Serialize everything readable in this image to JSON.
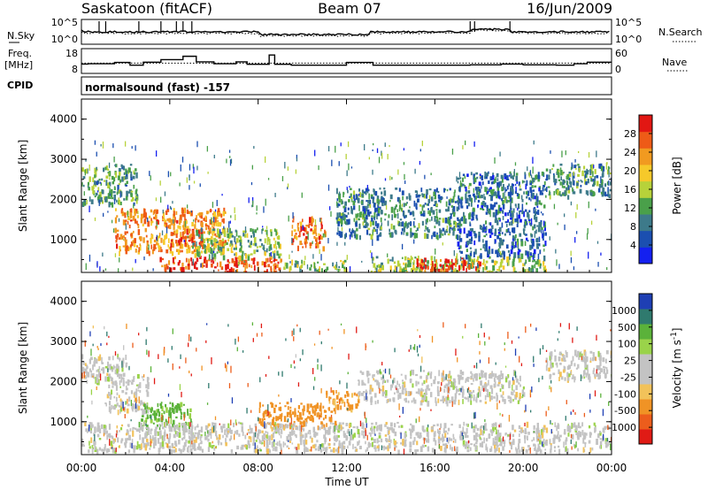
{
  "header": {
    "station": "Saskatoon (fitACF)",
    "beam": "Beam 07",
    "date": "16/Jun/2009"
  },
  "noise_panel": {
    "left_label": "N.Sky",
    "left_ticks": [
      "10^5",
      "10^0"
    ],
    "right_ticks": [
      "10^5",
      "10^0"
    ],
    "right_label": "N.Search"
  },
  "freq_panel": {
    "left_label_1": "Freq.",
    "left_label_2": "[MHz]",
    "left_ticks": [
      "18",
      "8"
    ],
    "right_ticks": [
      "60",
      "0"
    ],
    "right_label": "Nave",
    "freq_mhz_steps": [
      [
        0.0,
        11.6
      ],
      [
        0.3,
        11.8
      ],
      [
        1.5,
        12.5
      ],
      [
        2.2,
        11.0
      ],
      [
        2.8,
        12.6
      ],
      [
        3.6,
        14.0
      ],
      [
        4.6,
        15.8
      ],
      [
        5.2,
        12.8
      ],
      [
        6.0,
        11.8
      ],
      [
        7.0,
        12.8
      ],
      [
        7.5,
        11.5
      ],
      [
        8.5,
        16.5
      ],
      [
        8.75,
        11.5
      ],
      [
        9.5,
        11.0
      ],
      [
        11.0,
        11.0
      ],
      [
        12.0,
        12.5
      ],
      [
        13.2,
        11.0
      ],
      [
        14.5,
        11.0
      ],
      [
        17.0,
        11.0
      ],
      [
        17.6,
        11.2
      ],
      [
        19.0,
        11.6
      ],
      [
        20.0,
        11.2
      ],
      [
        21.5,
        11.0
      ],
      [
        22.3,
        11.8
      ],
      [
        22.9,
        12.6
      ],
      [
        24.0,
        12.6
      ]
    ],
    "nave_dotted": 25
  },
  "cpid_panel": {
    "label": "CPID",
    "program": "normalsound (fast) -157"
  },
  "power_panel": {
    "ylabel": "Slant Range [km]",
    "yticks": [
      "1000",
      "2000",
      "3000",
      "4000"
    ],
    "colorbar_label": "Power [dB]",
    "colorbar_ticks": [
      "4",
      "8",
      "12",
      "16",
      "20",
      "24",
      "28"
    ],
    "colorbar_colors": [
      "#1420f0",
      "#1b4fb0",
      "#3d7a8a",
      "#4aa04a",
      "#b7d23a",
      "#f6c92a",
      "#f19a20",
      "#ee5b17",
      "#e21713"
    ]
  },
  "velocity_panel": {
    "ylabel": "Slant Range [km]",
    "yticks": [
      "1000",
      "2000",
      "3000",
      "4000"
    ],
    "colorbar_label": "Velocity [m s",
    "colorbar_label_sup": "-1",
    "colorbar_label_end": "]",
    "colorbar_ticks": [
      "1000",
      "500",
      "100",
      "25",
      "-25",
      "-100",
      "-500",
      "-1000"
    ],
    "colorbar_colors": [
      "#1e3fb4",
      "#2f7a6e",
      "#5bb23a",
      "#9ad34a",
      "#c3c3c3",
      "#c3c3c3",
      "#f2c25a",
      "#f09325",
      "#ec5d1c",
      "#e01b15"
    ]
  },
  "xaxis": {
    "label": "Time UT",
    "ticks": [
      "00:00",
      "04:00",
      "08:00",
      "12:00",
      "16:00",
      "20:00",
      "00:00"
    ]
  },
  "chart_data": {
    "type": "heatmap",
    "title": "Saskatoon (fitACF) Beam 07 16/Jun/2009",
    "xlabel": "Time UT",
    "ylabel": "Slant Range [km]",
    "x_range_hours": [
      0,
      24
    ],
    "y_range_km": [
      180,
      4500
    ],
    "panels": [
      {
        "name": "Power [dB]",
        "colorbar_range": [
          0,
          30
        ],
        "regions": [
          {
            "t": [
              0.0,
              2.5
            ],
            "r": [
              1900,
              2900
            ],
            "v": 11
          },
          {
            "t": [
              1.5,
              6.5
            ],
            "r": [
              700,
              1800
            ],
            "v": 22
          },
          {
            "t": [
              4.0,
              5.5
            ],
            "r": [
              900,
              1300
            ],
            "v": 26
          },
          {
            "t": [
              3.5,
              6.0
            ],
            "r": [
              300,
              600
            ],
            "v": 27
          },
          {
            "t": [
              6.0,
              9.0
            ],
            "r": [
              200,
              600
            ],
            "v": 26
          },
          {
            "t": [
              5.0,
              9.0
            ],
            "r": [
              600,
              1300
            ],
            "v": 13
          },
          {
            "t": [
              9.5,
              11.0
            ],
            "r": [
              800,
              1600
            ],
            "v": 24
          },
          {
            "t": [
              9.0,
              12.0
            ],
            "r": [
              250,
              500
            ],
            "v": 14
          },
          {
            "t": [
              11.5,
              17.0
            ],
            "r": [
              1100,
              2300
            ],
            "v": 9
          },
          {
            "t": [
              13.0,
              21.0
            ],
            "r": [
              200,
              600
            ],
            "v": 14
          },
          {
            "t": [
              15.0,
              18.0
            ],
            "r": [
              250,
              550
            ],
            "v": 26
          },
          {
            "t": [
              17.0,
              21.0
            ],
            "r": [
              600,
              2700
            ],
            "v": 7
          },
          {
            "t": [
              21.0,
              24.0
            ],
            "r": [
              2100,
              2900
            ],
            "v": 10
          }
        ]
      },
      {
        "name": "Velocity [m s-1]",
        "colorbar_range": [
          -1000,
          1000
        ],
        "regions": [
          {
            "t": [
              0.0,
              2.0
            ],
            "r": [
              2000,
              2700
            ],
            "v": 0
          },
          {
            "t": [
              1.0,
              3.0
            ],
            "r": [
              1300,
              2200
            ],
            "v": 0
          },
          {
            "t": [
              2.5,
              5.0
            ],
            "r": [
              900,
              1500
            ],
            "v": 120
          },
          {
            "t": [
              8.0,
              11.5
            ],
            "r": [
              900,
              1500
            ],
            "v": -150
          },
          {
            "t": [
              11.0,
              12.5
            ],
            "r": [
              1300,
              1800
            ],
            "v": -120
          },
          {
            "t": [
              0.0,
              24.0
            ],
            "r": [
              300,
              1000
            ],
            "v": 0
          },
          {
            "t": [
              12.5,
              20.0
            ],
            "r": [
              1500,
              2300
            ],
            "v": 0
          },
          {
            "t": [
              21.0,
              24.0
            ],
            "r": [
              2100,
              2800
            ],
            "v": 0
          }
        ]
      }
    ]
  }
}
